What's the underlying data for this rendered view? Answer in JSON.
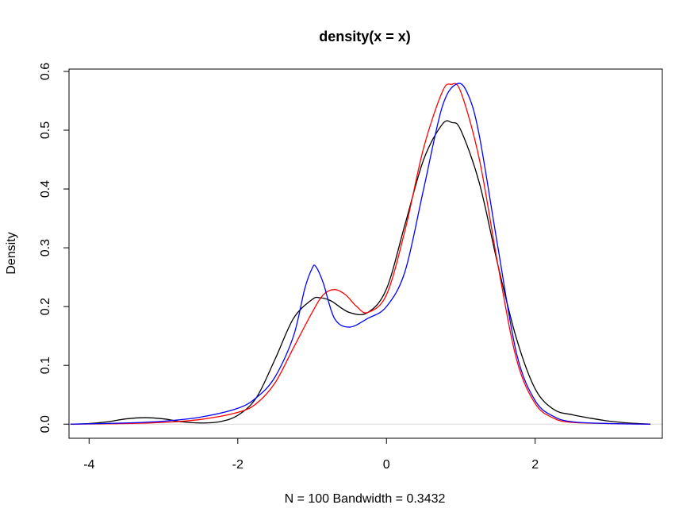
{
  "chart_data": {
    "type": "line",
    "title": "density(x = x)",
    "xlabel": "N = 100   Bandwidth = 0.3432",
    "ylabel": "Density",
    "xlim": [
      -4.27,
      3.71
    ],
    "ylim": [
      -0.024,
      0.604
    ],
    "xticks": [
      -4,
      -2,
      0,
      2
    ],
    "xtick_labels": [
      "-4",
      "-2",
      "0",
      "2"
    ],
    "yticks": [
      0.0,
      0.1,
      0.2,
      0.3,
      0.4,
      0.5,
      0.6
    ],
    "ytick_labels": [
      "0.0",
      "0.1",
      "0.2",
      "0.3",
      "0.4",
      "0.5",
      "0.6"
    ],
    "grid": false,
    "baseline": {
      "y": 0,
      "color": "#d9d9d9"
    },
    "series": [
      {
        "color": "#000000",
        "x": [
          -4.25,
          -4.0,
          -3.75,
          -3.5,
          -3.25,
          -3.0,
          -2.75,
          -2.5,
          -2.25,
          -2.0,
          -1.75,
          -1.5,
          -1.25,
          -1.0,
          -0.9,
          -0.75,
          -0.5,
          -0.25,
          0.0,
          0.25,
          0.5,
          0.75,
          0.88,
          1.0,
          1.25,
          1.5,
          1.75,
          2.0,
          2.25,
          2.5,
          2.75,
          3.0,
          3.25,
          3.55
        ],
        "y": [
          0.0,
          0.001,
          0.004,
          0.009,
          0.011,
          0.009,
          0.004,
          0.002,
          0.004,
          0.015,
          0.045,
          0.11,
          0.18,
          0.212,
          0.215,
          0.21,
          0.19,
          0.19,
          0.23,
          0.34,
          0.45,
          0.51,
          0.513,
          0.5,
          0.41,
          0.27,
          0.145,
          0.06,
          0.025,
          0.016,
          0.01,
          0.005,
          0.002,
          0.0
        ]
      },
      {
        "color": "#ff0000",
        "x": [
          -4.25,
          -3.5,
          -3.0,
          -2.5,
          -2.0,
          -1.75,
          -1.5,
          -1.25,
          -1.0,
          -0.85,
          -0.7,
          -0.55,
          -0.4,
          -0.25,
          0.0,
          0.25,
          0.5,
          0.75,
          0.87,
          1.0,
          1.25,
          1.5,
          1.75,
          2.0,
          2.25,
          2.5,
          3.0,
          3.55
        ],
        "y": [
          0.0,
          0.001,
          0.003,
          0.008,
          0.02,
          0.035,
          0.07,
          0.13,
          0.19,
          0.22,
          0.229,
          0.22,
          0.2,
          0.19,
          0.22,
          0.33,
          0.47,
          0.565,
          0.578,
          0.565,
          0.45,
          0.27,
          0.11,
          0.035,
          0.01,
          0.003,
          0.001,
          0.0
        ]
      },
      {
        "color": "#0000ff",
        "x": [
          -4.25,
          -3.5,
          -3.0,
          -2.5,
          -2.0,
          -1.75,
          -1.5,
          -1.25,
          -1.1,
          -1.0,
          -0.95,
          -0.85,
          -0.7,
          -0.5,
          -0.25,
          0.0,
          0.25,
          0.5,
          0.75,
          0.95,
          1.1,
          1.25,
          1.5,
          1.75,
          2.0,
          2.25,
          2.5,
          3.0,
          3.55
        ],
        "y": [
          0.0,
          0.002,
          0.005,
          0.012,
          0.027,
          0.045,
          0.08,
          0.15,
          0.23,
          0.265,
          0.268,
          0.24,
          0.18,
          0.165,
          0.18,
          0.2,
          0.26,
          0.4,
          0.54,
          0.579,
          0.56,
          0.49,
          0.3,
          0.12,
          0.04,
          0.013,
          0.004,
          0.001,
          0.0
        ]
      }
    ]
  }
}
